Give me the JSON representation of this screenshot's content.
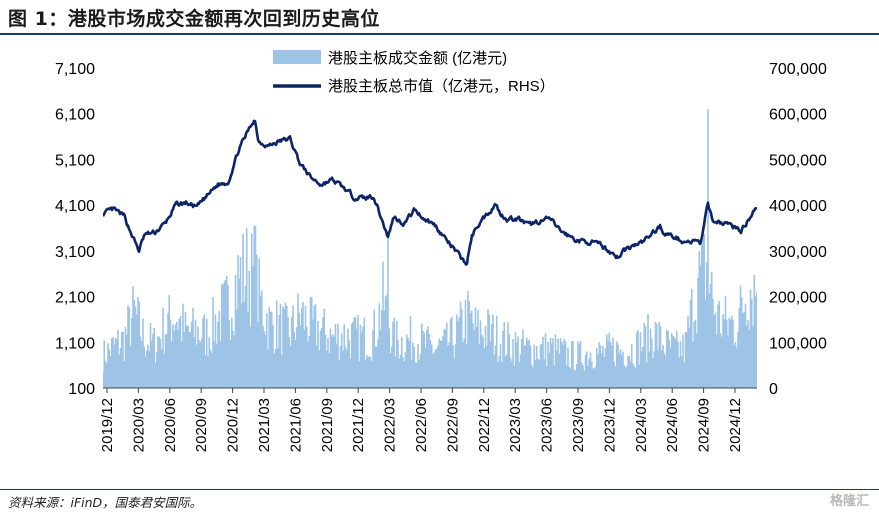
{
  "figure": {
    "title": "图 1：港股市场成交金额再次回到历史高位",
    "source": "资料来源：iFinD，国泰君安国际。",
    "watermark": "格隆汇"
  },
  "chart_data": {
    "type": "bar+line",
    "title": "图 1：港股市场成交金额再次回到历史高位",
    "legend_position": "top-center",
    "x_ticks": [
      "2019/12",
      "2020/03",
      "2020/06",
      "2020/09",
      "2020/12",
      "2021/03",
      "2021/06",
      "2021/09",
      "2021/12",
      "2022/03",
      "2022/06",
      "2022/09",
      "2022/12",
      "2023/03",
      "2023/06",
      "2023/09",
      "2023/12",
      "2024/03",
      "2024/06",
      "2024/09",
      "2024/12"
    ],
    "x_range": [
      "2019-12-01",
      "2025-02-28"
    ],
    "left_axis": {
      "ticks": [
        "7,100",
        "6,100",
        "5,100",
        "4,100",
        "3,100",
        "2,100",
        "1,100",
        "100"
      ],
      "ylim": [
        100,
        7100
      ]
    },
    "right_axis": {
      "ticks": [
        "700,000",
        "600,000",
        "500,000",
        "400,000",
        "300,000",
        "200,000",
        "100,000",
        "0"
      ],
      "ylim": [
        0,
        700000
      ]
    },
    "series": [
      {
        "name": "港股主板成交金额 (亿港元)",
        "kind": "bar",
        "axis": "left",
        "color": "#9dc3e6",
        "points": [
          [
            "2019-12-01",
            800
          ],
          [
            "2020-01-01",
            1000
          ],
          [
            "2020-02-01",
            1150
          ],
          [
            "2020-03-01",
            1750
          ],
          [
            "2020-04-01",
            1150
          ],
          [
            "2020-05-01",
            1050
          ],
          [
            "2020-06-01",
            1450
          ],
          [
            "2020-07-01",
            1700
          ],
          [
            "2020-08-01",
            1300
          ],
          [
            "2020-09-01",
            1350
          ],
          [
            "2020-10-01",
            1250
          ],
          [
            "2020-11-01",
            1600
          ],
          [
            "2020-12-01",
            1900
          ],
          [
            "2021-01-01",
            2500
          ],
          [
            "2021-02-01",
            2700
          ],
          [
            "2021-03-01",
            2100
          ],
          [
            "2021-04-01",
            1500
          ],
          [
            "2021-05-01",
            1450
          ],
          [
            "2021-06-01",
            1300
          ],
          [
            "2021-07-01",
            1700
          ],
          [
            "2021-08-01",
            1450
          ],
          [
            "2021-09-01",
            1350
          ],
          [
            "2021-10-01",
            1200
          ],
          [
            "2021-11-01",
            1250
          ],
          [
            "2021-12-01",
            1200
          ],
          [
            "2022-01-01",
            1200
          ],
          [
            "2022-02-01",
            1250
          ],
          [
            "2022-03-01",
            2000
          ],
          [
            "2022-04-01",
            1150
          ],
          [
            "2022-05-01",
            1100
          ],
          [
            "2022-06-01",
            1200
          ],
          [
            "2022-07-01",
            1050
          ],
          [
            "2022-08-01",
            950
          ],
          [
            "2022-09-01",
            1050
          ],
          [
            "2022-10-01",
            1250
          ],
          [
            "2022-11-01",
            1650
          ],
          [
            "2022-12-01",
            1350
          ],
          [
            "2023-01-01",
            1350
          ],
          [
            "2023-02-01",
            1200
          ],
          [
            "2023-03-01",
            1100
          ],
          [
            "2023-04-01",
            1000
          ],
          [
            "2023-05-01",
            950
          ],
          [
            "2023-06-01",
            950
          ],
          [
            "2023-07-01",
            950
          ],
          [
            "2023-08-01",
            900
          ],
          [
            "2023-09-01",
            800
          ],
          [
            "2023-10-01",
            800
          ],
          [
            "2023-11-01",
            900
          ],
          [
            "2023-12-01",
            850
          ],
          [
            "2024-01-01",
            950
          ],
          [
            "2024-02-01",
            900
          ],
          [
            "2024-03-01",
            950
          ],
          [
            "2024-04-01",
            1100
          ],
          [
            "2024-05-01",
            1300
          ],
          [
            "2024-06-01",
            1050
          ],
          [
            "2024-07-01",
            950
          ],
          [
            "2024-08-01",
            950
          ],
          [
            "2024-09-01",
            2200
          ],
          [
            "2024-10-01",
            2800
          ],
          [
            "2024-11-01",
            1650
          ],
          [
            "2024-12-01",
            1500
          ],
          [
            "2025-01-01",
            1500
          ],
          [
            "2025-02-01",
            2300
          ]
        ],
        "notable_peaks": [
          [
            "2021-02-18",
            3650
          ],
          [
            "2022-03-16",
            3450
          ],
          [
            "2024-10-08",
            6200
          ]
        ]
      },
      {
        "name": "港股主板总市值（亿港元，RHS）",
        "kind": "line",
        "axis": "right",
        "color": "#0d2466",
        "points": [
          [
            "2019-12-01",
            380000
          ],
          [
            "2020-01-01",
            390000
          ],
          [
            "2020-02-01",
            375000
          ],
          [
            "2020-03-15",
            300000
          ],
          [
            "2020-04-01",
            335000
          ],
          [
            "2020-05-01",
            340000
          ],
          [
            "2020-06-01",
            360000
          ],
          [
            "2020-07-01",
            400000
          ],
          [
            "2020-08-01",
            405000
          ],
          [
            "2020-09-01",
            395000
          ],
          [
            "2020-10-01",
            420000
          ],
          [
            "2020-11-01",
            445000
          ],
          [
            "2020-12-01",
            450000
          ],
          [
            "2021-01-01",
            520000
          ],
          [
            "2021-02-17",
            590000
          ],
          [
            "2021-03-01",
            540000
          ],
          [
            "2021-04-01",
            530000
          ],
          [
            "2021-05-01",
            540000
          ],
          [
            "2021-06-01",
            545000
          ],
          [
            "2021-07-01",
            490000
          ],
          [
            "2021-08-01",
            460000
          ],
          [
            "2021-09-01",
            445000
          ],
          [
            "2021-10-01",
            455000
          ],
          [
            "2021-11-01",
            440000
          ],
          [
            "2021-12-01",
            420000
          ],
          [
            "2022-01-01",
            415000
          ],
          [
            "2022-02-01",
            420000
          ],
          [
            "2022-03-15",
            330000
          ],
          [
            "2022-04-01",
            375000
          ],
          [
            "2022-05-01",
            360000
          ],
          [
            "2022-06-01",
            390000
          ],
          [
            "2022-07-01",
            370000
          ],
          [
            "2022-08-01",
            355000
          ],
          [
            "2022-09-01",
            325000
          ],
          [
            "2022-10-31",
            270000
          ],
          [
            "2022-11-15",
            330000
          ],
          [
            "2022-12-01",
            355000
          ],
          [
            "2023-01-27",
            405000
          ],
          [
            "2023-02-01",
            385000
          ],
          [
            "2023-03-01",
            370000
          ],
          [
            "2023-04-01",
            370000
          ],
          [
            "2023-05-01",
            355000
          ],
          [
            "2023-06-01",
            365000
          ],
          [
            "2023-07-01",
            370000
          ],
          [
            "2023-08-01",
            345000
          ],
          [
            "2023-09-01",
            330000
          ],
          [
            "2023-10-01",
            320000
          ],
          [
            "2023-11-01",
            320000
          ],
          [
            "2023-12-01",
            310000
          ],
          [
            "2024-01-22",
            285000
          ],
          [
            "2024-02-01",
            300000
          ],
          [
            "2024-03-01",
            310000
          ],
          [
            "2024-04-01",
            320000
          ],
          [
            "2024-05-20",
            355000
          ],
          [
            "2024-06-01",
            340000
          ],
          [
            "2024-07-01",
            330000
          ],
          [
            "2024-08-01",
            320000
          ],
          [
            "2024-09-01",
            320000
          ],
          [
            "2024-09-15",
            315000
          ],
          [
            "2024-10-07",
            400000
          ],
          [
            "2024-10-20",
            370000
          ],
          [
            "2024-11-01",
            365000
          ],
          [
            "2024-12-01",
            360000
          ],
          [
            "2025-01-13",
            345000
          ],
          [
            "2025-02-01",
            365000
          ],
          [
            "2025-02-21",
            395000
          ]
        ]
      }
    ]
  }
}
